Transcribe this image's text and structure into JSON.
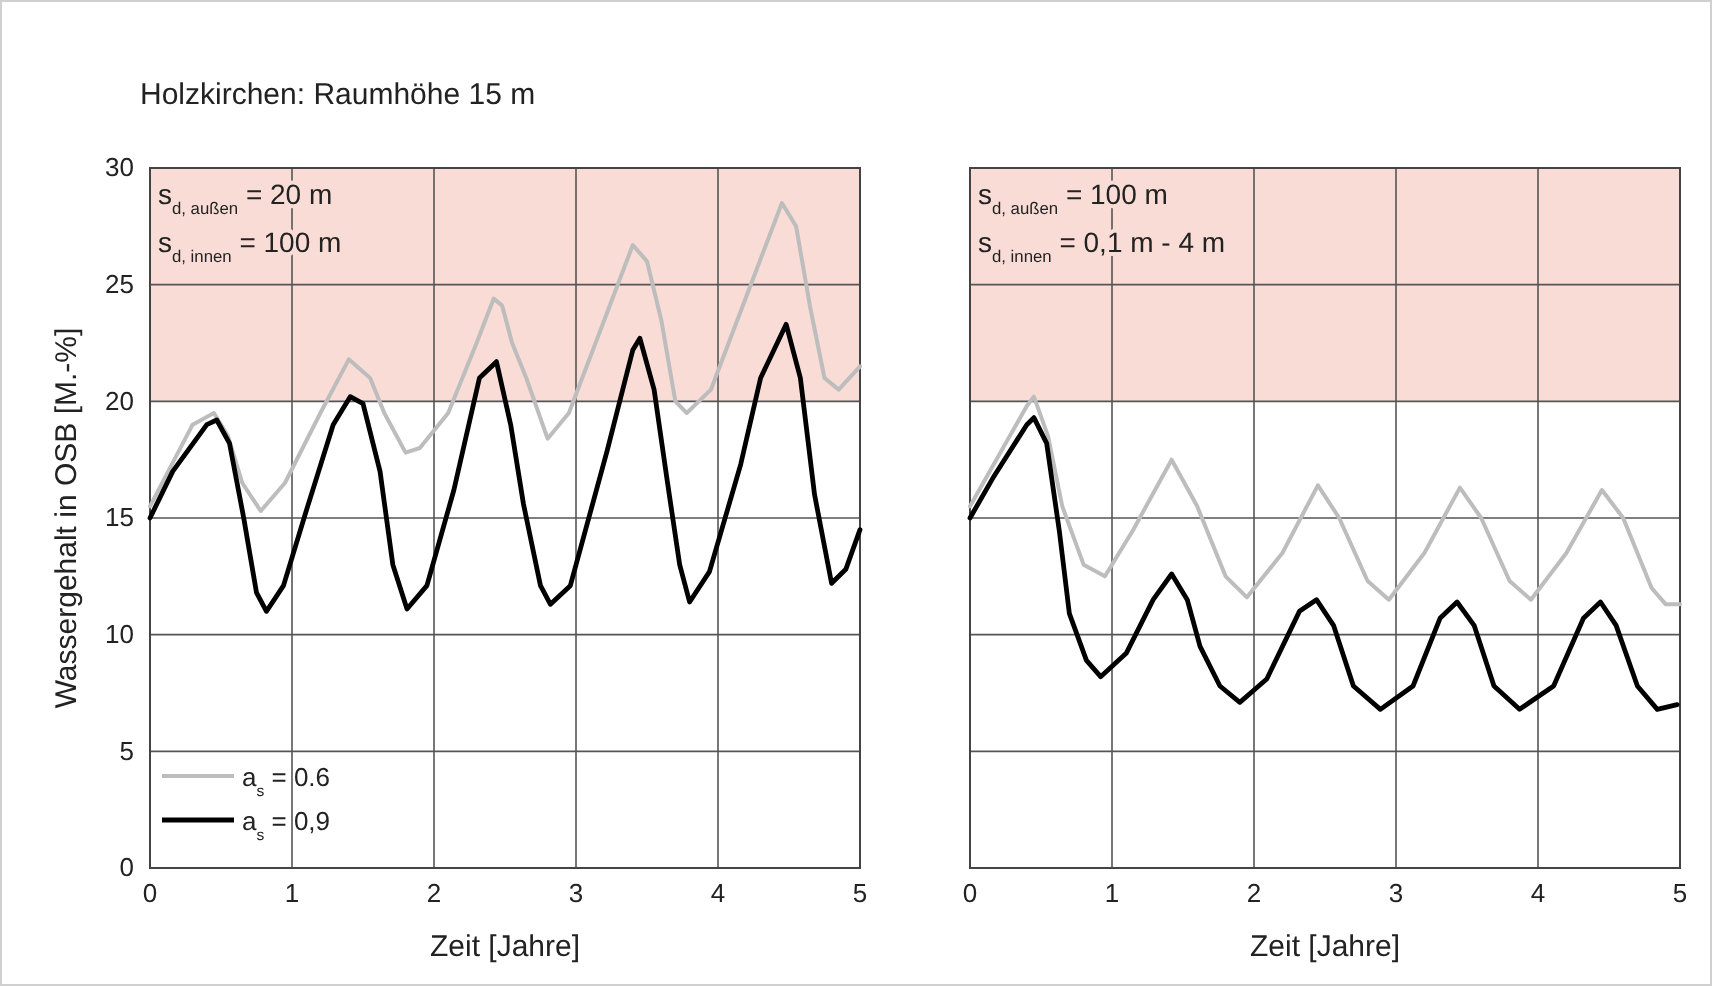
{
  "chart_data": [
    {
      "type": "line",
      "title": "Holzkirchen: Raumhöhe 15 m",
      "xlabel": "Zeit [Jahre]",
      "ylabel": "Wassergehalt in OSB [M.-%]",
      "annotations": [
        "s$_{d, außen}$ = 20 m",
        "s$_{d, innen}$ = 100 m"
      ],
      "xlim": [
        0,
        5
      ],
      "xticks": [
        0,
        1,
        2,
        3,
        4,
        5
      ],
      "ylim": [
        0,
        30
      ],
      "yticks": [
        0,
        5,
        10,
        15,
        20,
        25,
        30
      ],
      "grid": true,
      "legend": "bottom left",
      "bands": [
        {
          "axis": "y",
          "from": 20,
          "to": 30,
          "color": "#f9dcd6"
        }
      ],
      "series": [
        {
          "name": "a$_{s}$ = 0.6",
          "color": "#bdbdbd",
          "x": [
            0,
            0.3,
            0.45,
            0.55,
            0.65,
            0.78,
            0.95,
            1.2,
            1.4,
            1.55,
            1.65,
            1.8,
            1.9,
            2.1,
            2.3,
            2.42,
            2.48,
            2.55,
            2.65,
            2.8,
            2.95,
            3.2,
            3.4,
            3.5,
            3.6,
            3.7,
            3.78,
            3.95,
            4.2,
            4.45,
            4.55,
            4.65,
            4.75,
            4.85,
            5
          ],
          "values": [
            15.5,
            19.0,
            19.5,
            18.5,
            16.5,
            15.3,
            16.5,
            19.5,
            21.8,
            21.0,
            19.5,
            17.8,
            18.0,
            19.5,
            22.5,
            24.4,
            24.1,
            22.5,
            21.0,
            18.4,
            19.5,
            23.5,
            26.7,
            26.0,
            23.5,
            20.0,
            19.5,
            20.5,
            24.5,
            28.5,
            27.5,
            24.0,
            21.0,
            20.5,
            21.5
          ]
        },
        {
          "name": "a$_{s}$ = 0,9",
          "color": "#000000",
          "x": [
            0,
            0.16,
            0.4,
            0.47,
            0.56,
            0.66,
            0.75,
            0.82,
            0.94,
            1.1,
            1.29,
            1.41,
            1.5,
            1.62,
            1.71,
            1.81,
            1.95,
            2.14,
            2.32,
            2.44,
            2.54,
            2.63,
            2.75,
            2.82,
            2.96,
            3.22,
            3.4,
            3.45,
            3.55,
            3.64,
            3.73,
            3.8,
            3.94,
            4.16,
            4.3,
            4.48,
            4.58,
            4.68,
            4.8,
            4.9,
            5
          ],
          "values": [
            15.0,
            17.0,
            19.0,
            19.2,
            18.2,
            15.0,
            11.8,
            11.0,
            12.1,
            15.3,
            19.0,
            20.2,
            19.9,
            17.0,
            13.0,
            11.1,
            12.1,
            16.2,
            21.0,
            21.7,
            19.0,
            15.6,
            12.1,
            11.3,
            12.1,
            17.9,
            22.2,
            22.7,
            20.5,
            16.7,
            13.0,
            11.4,
            12.7,
            17.3,
            21.0,
            23.3,
            21.0,
            16.0,
            12.2,
            12.8,
            14.5
          ]
        }
      ]
    },
    {
      "type": "line",
      "xlabel": "Zeit [Jahre]",
      "annotations": [
        "s$_{d, außen}$ = 100 m",
        "s$_{d, innen}$ = 0,1 m - 4 m"
      ],
      "xlim": [
        0,
        5
      ],
      "xticks": [
        0,
        1,
        2,
        3,
        4,
        5
      ],
      "ylim": [
        0,
        30
      ],
      "yticks": [
        0,
        5,
        10,
        15,
        20,
        25,
        30
      ],
      "grid": true,
      "tick_labels": "x",
      "bands": [
        {
          "axis": "y",
          "from": 20,
          "to": 30,
          "color": "#f9dcd6"
        }
      ],
      "series": [
        {
          "color": "#bdbdbd",
          "x": [
            0,
            0.4,
            0.45,
            0.55,
            0.65,
            0.8,
            0.95,
            1.15,
            1.42,
            1.6,
            1.8,
            1.95,
            2.2,
            2.45,
            2.6,
            2.8,
            2.95,
            3.2,
            3.45,
            3.6,
            3.8,
            3.95,
            4.2,
            4.45,
            4.6,
            4.8,
            4.9,
            5
          ],
          "values": [
            15.5,
            19.8,
            20.2,
            18.5,
            15.5,
            13.0,
            12.5,
            14.5,
            17.5,
            15.5,
            12.5,
            11.6,
            13.5,
            16.4,
            15.0,
            12.3,
            11.5,
            13.5,
            16.3,
            15.0,
            12.3,
            11.5,
            13.5,
            16.2,
            15.0,
            12.0,
            11.3,
            11.3
          ]
        },
        {
          "color": "#000000",
          "x": [
            0,
            0.16,
            0.4,
            0.45,
            0.54,
            0.63,
            0.7,
            0.82,
            0.92,
            1.1,
            1.29,
            1.42,
            1.53,
            1.62,
            1.76,
            1.9,
            2.09,
            2.32,
            2.44,
            2.56,
            2.7,
            2.89,
            3.12,
            3.31,
            3.43,
            3.55,
            3.69,
            3.87,
            4.11,
            4.32,
            4.44,
            4.55,
            4.7,
            4.84,
            4.98
          ],
          "values": [
            15.0,
            16.7,
            19.0,
            19.3,
            18.2,
            14.4,
            10.9,
            8.9,
            8.2,
            9.2,
            11.5,
            12.6,
            11.5,
            9.5,
            7.8,
            7.1,
            8.1,
            11.0,
            11.5,
            10.4,
            7.8,
            6.8,
            7.8,
            10.7,
            11.4,
            10.4,
            7.8,
            6.8,
            7.8,
            10.7,
            11.4,
            10.4,
            7.8,
            6.8,
            7.0
          ]
        }
      ]
    }
  ]
}
